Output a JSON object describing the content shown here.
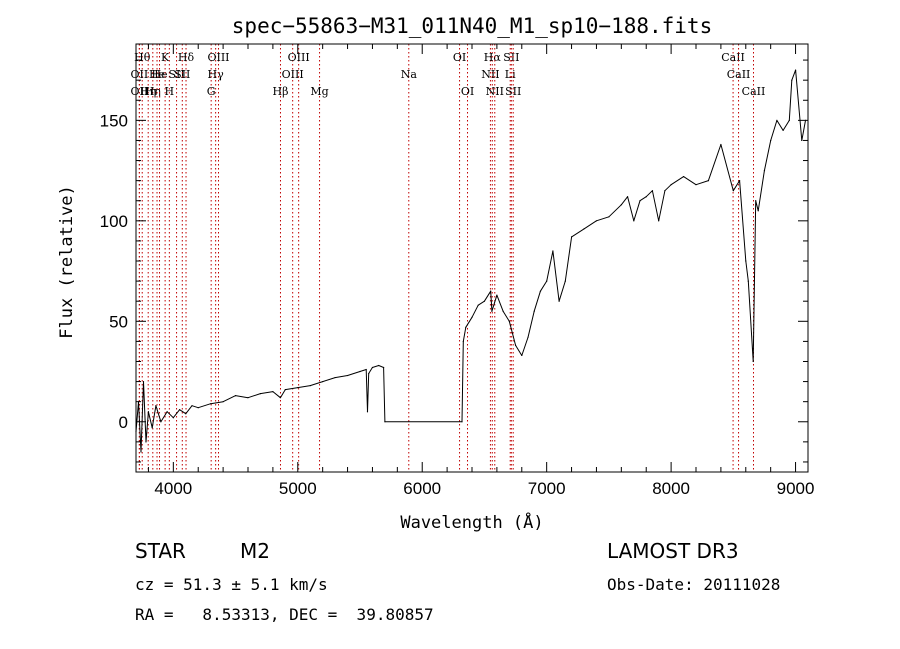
{
  "chart_data": {
    "type": "line",
    "title": "spec−55863−M31_011N40_M1_sp10−188.fits",
    "xlabel": "Wavelength (Å)",
    "ylabel": "Flux (relative)",
    "xlim": [
      3700,
      9100
    ],
    "ylim": [
      -25,
      188
    ],
    "xticks": [
      4000,
      5000,
      6000,
      7000,
      8000,
      9000
    ],
    "yticks": [
      0,
      50,
      100,
      150
    ],
    "series": [
      {
        "name": "flux",
        "x": [
          3700,
          3720,
          3740,
          3760,
          3780,
          3800,
          3830,
          3860,
          3900,
          3950,
          4000,
          4050,
          4100,
          4150,
          4200,
          4300,
          4400,
          4500,
          4600,
          4700,
          4800,
          4860,
          4900,
          5000,
          5100,
          5200,
          5300,
          5400,
          5500,
          5550,
          5560,
          5570,
          5600,
          5650,
          5690,
          5700,
          6320,
          6330,
          6350,
          6400,
          6450,
          6500,
          6550,
          6560,
          6600,
          6650,
          6700,
          6750,
          6800,
          6850,
          6900,
          6950,
          7000,
          7050,
          7100,
          7150,
          7200,
          7300,
          7400,
          7500,
          7600,
          7650,
          7700,
          7750,
          7800,
          7850,
          7900,
          7950,
          8000,
          8100,
          8200,
          8300,
          8400,
          8500,
          8550,
          8600,
          8620,
          8660,
          8680,
          8700,
          8750,
          8800,
          8850,
          8900,
          8950,
          8970,
          9000,
          9050,
          9080
        ],
        "y": [
          -5,
          10,
          -15,
          20,
          -10,
          5,
          -3,
          8,
          0,
          5,
          2,
          6,
          4,
          8,
          7,
          9,
          10,
          13,
          12,
          14,
          15,
          12,
          16,
          17,
          18,
          20,
          22,
          23,
          25,
          26,
          5,
          24,
          27,
          28,
          27,
          0,
          0,
          40,
          47,
          52,
          58,
          60,
          65,
          55,
          63,
          55,
          50,
          38,
          33,
          42,
          55,
          65,
          70,
          85,
          60,
          70,
          92,
          96,
          100,
          102,
          108,
          112,
          100,
          110,
          112,
          115,
          100,
          115,
          118,
          122,
          118,
          120,
          138,
          115,
          120,
          80,
          70,
          30,
          110,
          105,
          125,
          140,
          150,
          145,
          150,
          170,
          175,
          140,
          150
        ]
      }
    ],
    "lines": [
      {
        "wl": 3750,
        "label": "Hθ",
        "row": 0
      },
      {
        "wl": 3727,
        "label": "OII",
        "row": 1
      },
      {
        "wl": 3727,
        "label": "OII",
        "row": 2
      },
      {
        "wl": 3798,
        "label": "Hη",
        "row": 2
      },
      {
        "wl": 3835,
        "label": "Hη",
        "row": 2
      },
      {
        "wl": 3869,
        "label": "He",
        "row": 1
      },
      {
        "wl": 3889,
        "label": "He",
        "row": 1
      },
      {
        "wl": 3934,
        "label": "K",
        "row": 0
      },
      {
        "wl": 3968,
        "label": "H",
        "row": 2
      },
      {
        "wl": 4026,
        "label": "SII",
        "row": 1
      },
      {
        "wl": 4072,
        "label": "SII",
        "row": 1
      },
      {
        "wl": 4102,
        "label": "Hδ",
        "row": 0
      },
      {
        "wl": 4304,
        "label": "G",
        "row": 2
      },
      {
        "wl": 4340,
        "label": "Hγ",
        "row": 1
      },
      {
        "wl": 4363,
        "label": "OIII",
        "row": 0
      },
      {
        "wl": 4861,
        "label": "Hβ",
        "row": 2
      },
      {
        "wl": 4959,
        "label": "OIII",
        "row": 1
      },
      {
        "wl": 5007,
        "label": "OIII",
        "row": 0
      },
      {
        "wl": 5175,
        "label": "Mg",
        "row": 2
      },
      {
        "wl": 5892,
        "label": "Na",
        "row": 1
      },
      {
        "wl": 6300,
        "label": "OI",
        "row": 0
      },
      {
        "wl": 6364,
        "label": "OI",
        "row": 2
      },
      {
        "wl": 6548,
        "label": "NII",
        "row": 1
      },
      {
        "wl": 6563,
        "label": "Hα",
        "row": 0
      },
      {
        "wl": 6583,
        "label": "NII",
        "row": 2
      },
      {
        "wl": 6707,
        "label": "Li",
        "row": 1
      },
      {
        "wl": 6716,
        "label": "SII",
        "row": 0
      },
      {
        "wl": 6731,
        "label": "SII",
        "row": 2
      },
      {
        "wl": 8498,
        "label": "CaII",
        "row": 0
      },
      {
        "wl": 8542,
        "label": "CaII",
        "row": 1
      },
      {
        "wl": 8662,
        "label": "CaII",
        "row": 2
      }
    ]
  },
  "info": {
    "class_label": "STAR",
    "subclass_label": "M2",
    "cz_text": "cz = 51.3 ± 5.1 km/s",
    "coords_text": "RA =   8.53313, DEC =  39.80857",
    "survey_text": "LAMOST DR3",
    "obs_date_text": "Obs-Date: 20111028"
  }
}
